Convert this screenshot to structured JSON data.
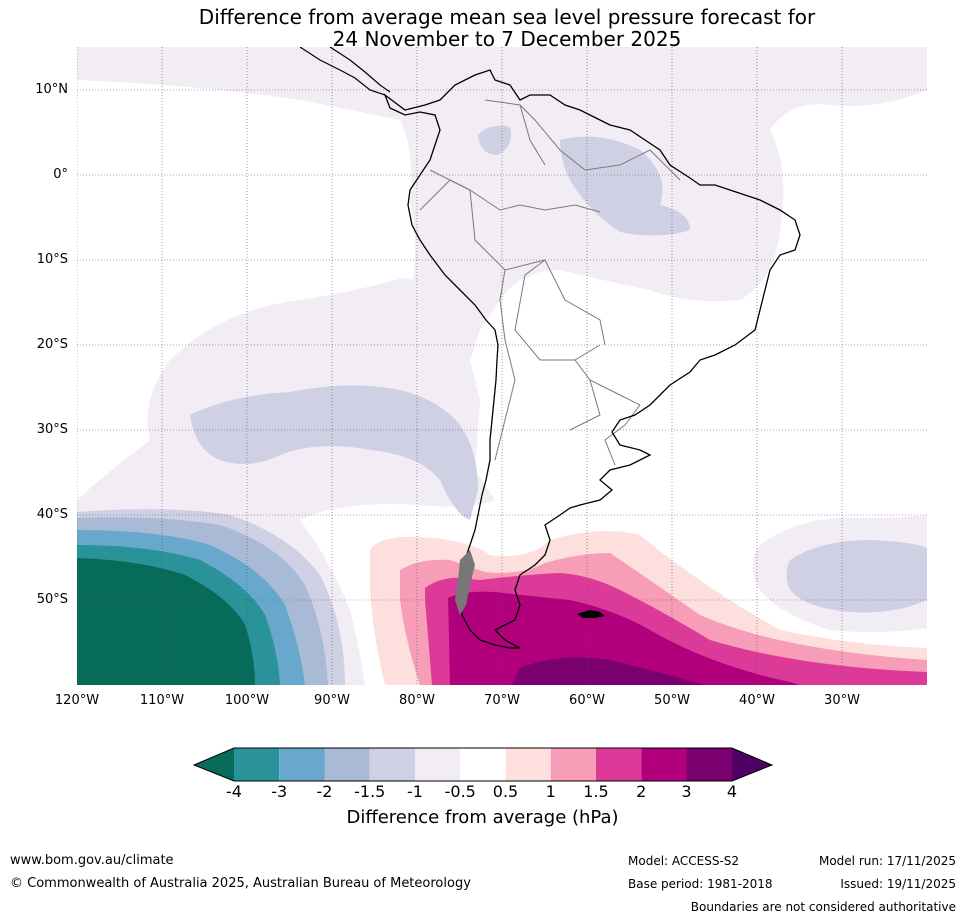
{
  "title": {
    "line1": "Difference from average mean sea level pressure forecast for",
    "line2": "24 November to 7 December 2025"
  },
  "map": {
    "lat_labels": [
      "10°N",
      "0°",
      "10°S",
      "20°S",
      "30°S",
      "40°S",
      "50°S"
    ],
    "lon_labels": [
      "120°W",
      "110°W",
      "100°W",
      "90°W",
      "80°W",
      "70°W",
      "60°W",
      "50°W",
      "40°W",
      "30°W"
    ]
  },
  "colorbar": {
    "ticks": [
      "-4",
      "-3",
      "-2",
      "-1.5",
      "-1",
      "-0.5",
      "0.5",
      "1",
      "1.5",
      "2",
      "3",
      "4"
    ],
    "colors": [
      "#076b5a",
      "#2a9299",
      "#68a8cd",
      "#a9bad6",
      "#d0d0e4",
      "#f2ecf4",
      "#ffffff",
      "#fde0de",
      "#f79db7",
      "#dc3a98",
      "#b2007c",
      "#7a006f",
      "#4e0064"
    ],
    "label": "Difference from average (hPa)"
  },
  "footer": {
    "website": "www.bom.gov.au/climate",
    "copyright": "© Commonwealth of Australia 2025, Australian Bureau of Meteorology",
    "model": "Model: ACCESS-S2",
    "base_period": "Base period: 1981-2018",
    "model_run": "Model run: 17/11/2025",
    "issued": "Issued: 19/11/2025",
    "disclaimer": "Boundaries are not considered authoritative"
  }
}
